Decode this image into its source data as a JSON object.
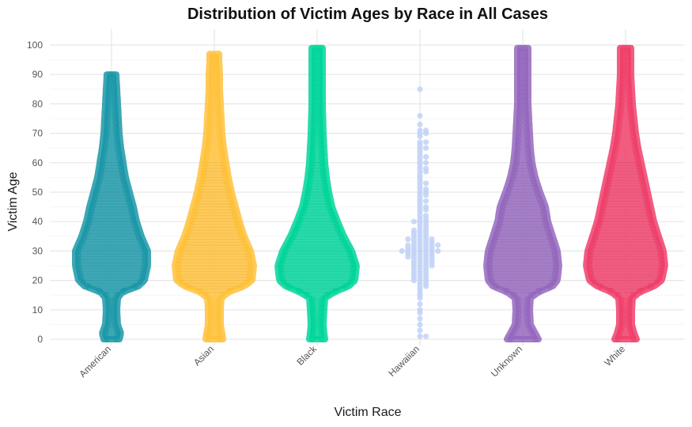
{
  "chart_data": {
    "type": "beeswarm",
    "title": "Distribution of Victim Ages by Race in All Cases",
    "xlabel": "Victim Race",
    "ylabel": "Victim Age",
    "ylim": [
      0,
      100
    ],
    "yticks": [
      0,
      10,
      20,
      30,
      40,
      50,
      60,
      70,
      80,
      90,
      100
    ],
    "grid": true,
    "legend": "none",
    "categories": [
      "American",
      "Asian",
      "Black",
      "Hawaiian",
      "Unknown",
      "White"
    ],
    "series": [
      {
        "category": "American",
        "color": "#1b98a8",
        "density": "dense",
        "min_age": 0,
        "max_age": 90,
        "profile": [
          [
            0,
            6
          ],
          [
            2,
            8
          ],
          [
            5,
            4
          ],
          [
            10,
            3
          ],
          [
            14,
            4
          ],
          [
            16,
            10
          ],
          [
            18,
            30
          ],
          [
            20,
            38
          ],
          [
            25,
            42
          ],
          [
            30,
            42
          ],
          [
            35,
            34
          ],
          [
            40,
            28
          ],
          [
            45,
            24
          ],
          [
            50,
            19
          ],
          [
            55,
            14
          ],
          [
            60,
            11
          ],
          [
            65,
            8
          ],
          [
            70,
            6
          ],
          [
            75,
            5
          ],
          [
            80,
            4
          ],
          [
            85,
            3
          ],
          [
            90,
            2
          ]
        ]
      },
      {
        "category": "Asian",
        "color": "#ffc13b",
        "density": "dense",
        "min_age": 0,
        "max_age": 97,
        "profile": [
          [
            0,
            7
          ],
          [
            2,
            6
          ],
          [
            5,
            4
          ],
          [
            10,
            4
          ],
          [
            14,
            5
          ],
          [
            16,
            14
          ],
          [
            18,
            34
          ],
          [
            20,
            44
          ],
          [
            25,
            46
          ],
          [
            30,
            42
          ],
          [
            35,
            34
          ],
          [
            40,
            28
          ],
          [
            45,
            23
          ],
          [
            50,
            18
          ],
          [
            55,
            14
          ],
          [
            60,
            11
          ],
          [
            65,
            8
          ],
          [
            70,
            6
          ],
          [
            75,
            5
          ],
          [
            80,
            4
          ],
          [
            85,
            3
          ],
          [
            90,
            3
          ],
          [
            95,
            2
          ],
          [
            97,
            2
          ]
        ]
      },
      {
        "category": "Black",
        "color": "#00d59a",
        "density": "dense",
        "min_age": 0,
        "max_age": 99,
        "profile": [
          [
            0,
            6
          ],
          [
            2,
            5
          ],
          [
            5,
            4
          ],
          [
            10,
            5
          ],
          [
            14,
            6
          ],
          [
            16,
            18
          ],
          [
            18,
            36
          ],
          [
            20,
            44
          ],
          [
            25,
            46
          ],
          [
            30,
            40
          ],
          [
            35,
            30
          ],
          [
            40,
            22
          ],
          [
            45,
            15
          ],
          [
            50,
            11
          ],
          [
            55,
            8
          ],
          [
            60,
            6
          ],
          [
            65,
            5
          ],
          [
            70,
            4
          ],
          [
            80,
            3
          ],
          [
            90,
            3
          ],
          [
            99,
            3
          ]
        ]
      },
      {
        "category": "Hawaiian",
        "color": "#c2d2f7",
        "density": "sparse",
        "min_age": 1,
        "max_age": 85,
        "ages": [
          85,
          76,
          73,
          71,
          71,
          70,
          70,
          69,
          67,
          67,
          66,
          65,
          65,
          64,
          63,
          62,
          62,
          61,
          60,
          60,
          59,
          58,
          58,
          57,
          57,
          56,
          55,
          54,
          53,
          53,
          52,
          51,
          51,
          50,
          50,
          49,
          49,
          48,
          47,
          47,
          46,
          45,
          45,
          44,
          44,
          43,
          42,
          42,
          41,
          41,
          40,
          40,
          40,
          39,
          39,
          38,
          38,
          37,
          37,
          37,
          36,
          36,
          36,
          35,
          35,
          35,
          34,
          34,
          34,
          34,
          34,
          33,
          33,
          33,
          33,
          32,
          32,
          32,
          32,
          32,
          32,
          31,
          31,
          31,
          31,
          31,
          30,
          30,
          30,
          30,
          30,
          30,
          30,
          29,
          29,
          29,
          29,
          29,
          28,
          28,
          28,
          28,
          28,
          27,
          27,
          27,
          27,
          26,
          26,
          26,
          26,
          25,
          25,
          25,
          25,
          24,
          24,
          24,
          23,
          23,
          23,
          22,
          22,
          22,
          21,
          21,
          21,
          20,
          20,
          20,
          19,
          19,
          18,
          18,
          17,
          16,
          15,
          14,
          12,
          10,
          9,
          7,
          5,
          3,
          1,
          1
        ]
      },
      {
        "category": "Unknown",
        "color": "#9467bd",
        "density": "dense",
        "min_age": 0,
        "max_age": 99,
        "profile": [
          [
            0,
            16
          ],
          [
            2,
            12
          ],
          [
            5,
            6
          ],
          [
            10,
            5
          ],
          [
            14,
            6
          ],
          [
            16,
            16
          ],
          [
            18,
            34
          ],
          [
            20,
            40
          ],
          [
            25,
            42
          ],
          [
            30,
            40
          ],
          [
            35,
            34
          ],
          [
            40,
            28
          ],
          [
            45,
            25
          ],
          [
            50,
            18
          ],
          [
            55,
            12
          ],
          [
            60,
            8
          ],
          [
            65,
            6
          ],
          [
            70,
            5
          ],
          [
            80,
            3
          ],
          [
            90,
            3
          ],
          [
            99,
            3
          ]
        ]
      },
      {
        "category": "White",
        "color": "#ee3f6a",
        "density": "dense",
        "min_age": 0,
        "max_age": 99,
        "profile": [
          [
            0,
            10
          ],
          [
            2,
            7
          ],
          [
            5,
            4
          ],
          [
            10,
            4
          ],
          [
            14,
            5
          ],
          [
            16,
            14
          ],
          [
            18,
            32
          ],
          [
            20,
            42
          ],
          [
            25,
            46
          ],
          [
            30,
            44
          ],
          [
            35,
            38
          ],
          [
            40,
            32
          ],
          [
            45,
            28
          ],
          [
            50,
            24
          ],
          [
            55,
            20
          ],
          [
            60,
            16
          ],
          [
            65,
            12
          ],
          [
            70,
            9
          ],
          [
            75,
            7
          ],
          [
            80,
            5
          ],
          [
            85,
            4
          ],
          [
            90,
            3
          ],
          [
            95,
            3
          ],
          [
            99,
            3
          ]
        ]
      }
    ]
  }
}
